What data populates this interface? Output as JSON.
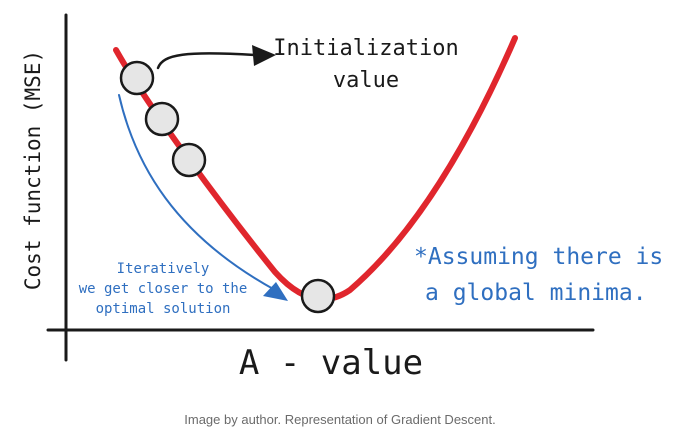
{
  "axes": {
    "ylabel": "Cost function (MSE)",
    "xlabel": "A - value"
  },
  "annotations": {
    "init": [
      "Initialization",
      "value"
    ],
    "iterative": [
      "Iteratively",
      "we get closer to the",
      "optimal solution"
    ],
    "assumption": [
      "*Assuming there is",
      "a global minima."
    ]
  },
  "caption": "Image by author. Representation of Gradient Descent.",
  "colors": {
    "curve": "#e0262d",
    "descent_arrow": "#2f6fc0",
    "note_text": "#2f6fc0",
    "ink": "#1a1a1a",
    "point_fill": "#e6e6e6"
  },
  "steps": 4
}
